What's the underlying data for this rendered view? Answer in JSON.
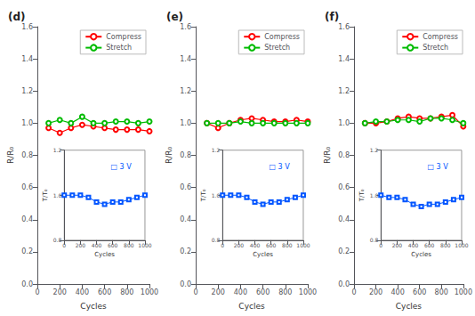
{
  "chart_data": [
    {
      "type": "line",
      "title": "(d)",
      "xlabel": "Cycles",
      "ylabel": "R/R₀",
      "x": [
        100,
        200,
        300,
        400,
        500,
        600,
        700,
        800,
        900,
        1000
      ],
      "series": [
        {
          "name": "Compress",
          "color": "#FF0000",
          "marker": "circle",
          "values": [
            0.97,
            0.94,
            0.97,
            0.99,
            0.98,
            0.97,
            0.96,
            0.96,
            0.96,
            0.95
          ]
        },
        {
          "name": "Stretch",
          "color": "#00BB00",
          "marker": "circle",
          "values": [
            1.0,
            1.02,
            1.0,
            1.04,
            1.0,
            1.0,
            1.01,
            1.01,
            1.0,
            1.01
          ]
        }
      ],
      "xlim": [
        0,
        1000
      ],
      "xticks": [
        0,
        200,
        400,
        600,
        800,
        1000
      ],
      "ylim": [
        0.0,
        1.6
      ],
      "yticks": [
        {
          "value": 0.0,
          "label": "0.0"
        },
        0.2,
        0.4,
        0.6,
        0.8,
        {
          "value": 1.0,
          "label": "1.0"
        },
        1.2,
        1.4,
        1.6
      ],
      "grid": false,
      "legend": "upper right"
    },
    {
      "type": "line",
      "xlabel": "Cycles",
      "ylabel": "T/T₀",
      "annotations": [
        "□ 3 V"
      ],
      "x": [
        0,
        100,
        200,
        300,
        400,
        500,
        600,
        700,
        800,
        900,
        1000
      ],
      "values": [
        1.0,
        1.0,
        1.0,
        0.99,
        0.97,
        0.96,
        0.97,
        0.97,
        0.98,
        0.99,
        1.0
      ],
      "color": "#0055FF",
      "marker": "square",
      "xlim": [
        0,
        1000
      ],
      "xticks": [
        0,
        200,
        400,
        600,
        800,
        1000
      ],
      "ylim": [
        0.8,
        1.2
      ],
      "yticks": [
        0.8,
        {
          "value": 1.0,
          "label": "1.0"
        },
        1.2
      ],
      "grid": false
    },
    {
      "type": "line",
      "title": "(e)",
      "xlabel": "Cycles",
      "ylabel": "R/R₀",
      "x": [
        100,
        200,
        300,
        400,
        500,
        600,
        700,
        800,
        900,
        1000
      ],
      "series": [
        {
          "name": "Compress",
          "color": "#FF0000",
          "marker": "circle",
          "values": [
            1.0,
            0.97,
            1.0,
            1.02,
            1.03,
            1.02,
            1.01,
            1.01,
            1.02,
            1.01
          ]
        },
        {
          "name": "Stretch",
          "color": "#00BB00",
          "marker": "circle",
          "values": [
            1.0,
            1.0,
            1.0,
            1.01,
            1.0,
            1.0,
            1.0,
            1.0,
            1.0,
            1.0
          ]
        }
      ],
      "xlim": [
        0,
        1000
      ],
      "xticks": [
        0,
        200,
        400,
        600,
        800,
        1000
      ],
      "ylim": [
        0.0,
        1.6
      ],
      "yticks": [
        {
          "value": 0.0,
          "label": "0.0"
        },
        0.2,
        0.4,
        0.6,
        0.8,
        {
          "value": 1.0,
          "label": "1.0"
        },
        1.2,
        1.4,
        1.6
      ],
      "grid": false,
      "legend": "upper right"
    },
    {
      "type": "line",
      "xlabel": "Cycles",
      "ylabel": "T/T₀",
      "annotations": [
        "□ 3 V"
      ],
      "x": [
        0,
        100,
        200,
        300,
        400,
        500,
        600,
        700,
        800,
        900,
        1000
      ],
      "values": [
        1.0,
        1.0,
        1.0,
        0.99,
        0.97,
        0.96,
        0.97,
        0.97,
        0.98,
        0.99,
        1.0
      ],
      "color": "#0055FF",
      "marker": "square",
      "xlim": [
        0,
        1000
      ],
      "xticks": [
        0,
        200,
        400,
        600,
        800,
        1000
      ],
      "ylim": [
        0.8,
        1.2
      ],
      "yticks": [
        0.8,
        {
          "value": 1.0,
          "label": "1.0"
        },
        1.2
      ],
      "grid": false
    },
    {
      "type": "line",
      "title": "(f)",
      "xlabel": "Cycles",
      "ylabel": "R/R₀",
      "x": [
        100,
        200,
        300,
        400,
        500,
        600,
        700,
        800,
        900,
        1000
      ],
      "series": [
        {
          "name": "Compress",
          "color": "#FF0000",
          "marker": "circle",
          "values": [
            1.0,
            1.0,
            1.01,
            1.03,
            1.04,
            1.03,
            1.03,
            1.04,
            1.05,
            0.98
          ]
        },
        {
          "name": "Stretch",
          "color": "#00BB00",
          "marker": "circle",
          "values": [
            1.0,
            1.01,
            1.01,
            1.02,
            1.02,
            1.01,
            1.03,
            1.03,
            1.02,
            1.0
          ]
        }
      ],
      "xlim": [
        0,
        1000
      ],
      "xticks": [
        0,
        200,
        400,
        600,
        800,
        1000
      ],
      "ylim": [
        0.0,
        1.6
      ],
      "yticks": [
        {
          "value": 0.0,
          "label": "0.0"
        },
        0.2,
        0.4,
        0.6,
        0.8,
        {
          "value": 1.0,
          "label": "1.0"
        },
        1.2,
        1.4,
        1.6
      ],
      "grid": false,
      "legend": "upper right"
    },
    {
      "type": "line",
      "xlabel": "Cycles",
      "ylabel": "T/T₀",
      "annotations": [
        "□ 3 V"
      ],
      "x": [
        0,
        100,
        200,
        300,
        400,
        500,
        600,
        700,
        800,
        900,
        1000
      ],
      "values": [
        1.0,
        0.99,
        0.99,
        0.98,
        0.96,
        0.95,
        0.96,
        0.96,
        0.97,
        0.98,
        0.99
      ],
      "color": "#0055FF",
      "marker": "square",
      "xlim": [
        0,
        1000
      ],
      "xticks": [
        0,
        200,
        400,
        600,
        800,
        1000
      ],
      "ylim": [
        0.8,
        1.2
      ],
      "yticks": [
        0.8,
        {
          "value": 1.0,
          "label": "1.0"
        },
        1.2
      ],
      "grid": false
    }
  ]
}
